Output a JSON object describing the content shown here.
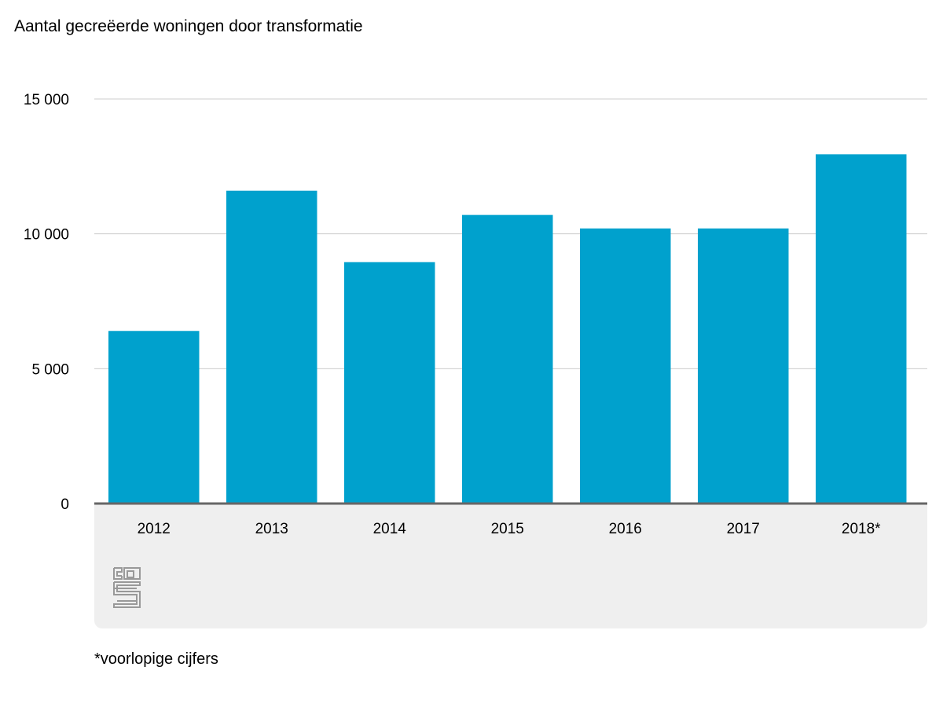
{
  "chart_data": {
    "type": "bar",
    "title": "Aantal gecreëerde woningen door transformatie",
    "xlabel": "",
    "ylabel": "",
    "categories": [
      "2012",
      "2013",
      "2014",
      "2015",
      "2016",
      "2017",
      "2018*"
    ],
    "values": [
      6400,
      11600,
      8950,
      10700,
      10200,
      10200,
      12950
    ],
    "ylim": [
      0,
      15000
    ],
    "yticks": [
      {
        "value": 0,
        "label": "0"
      },
      {
        "value": 5000,
        "label": "5 000"
      },
      {
        "value": 10000,
        "label": "10 000"
      },
      {
        "value": 15000,
        "label": "15 000"
      }
    ],
    "grid": true,
    "legend": "none"
  },
  "colors": {
    "bar": "#00a1cd",
    "grid": "#cccccc",
    "axis": "#666666",
    "footer_panel": "#efefef",
    "logo": "#999999"
  },
  "logo": {
    "icon": "cbs-logo-icon"
  },
  "footnote": "*voorlopige cijfers"
}
